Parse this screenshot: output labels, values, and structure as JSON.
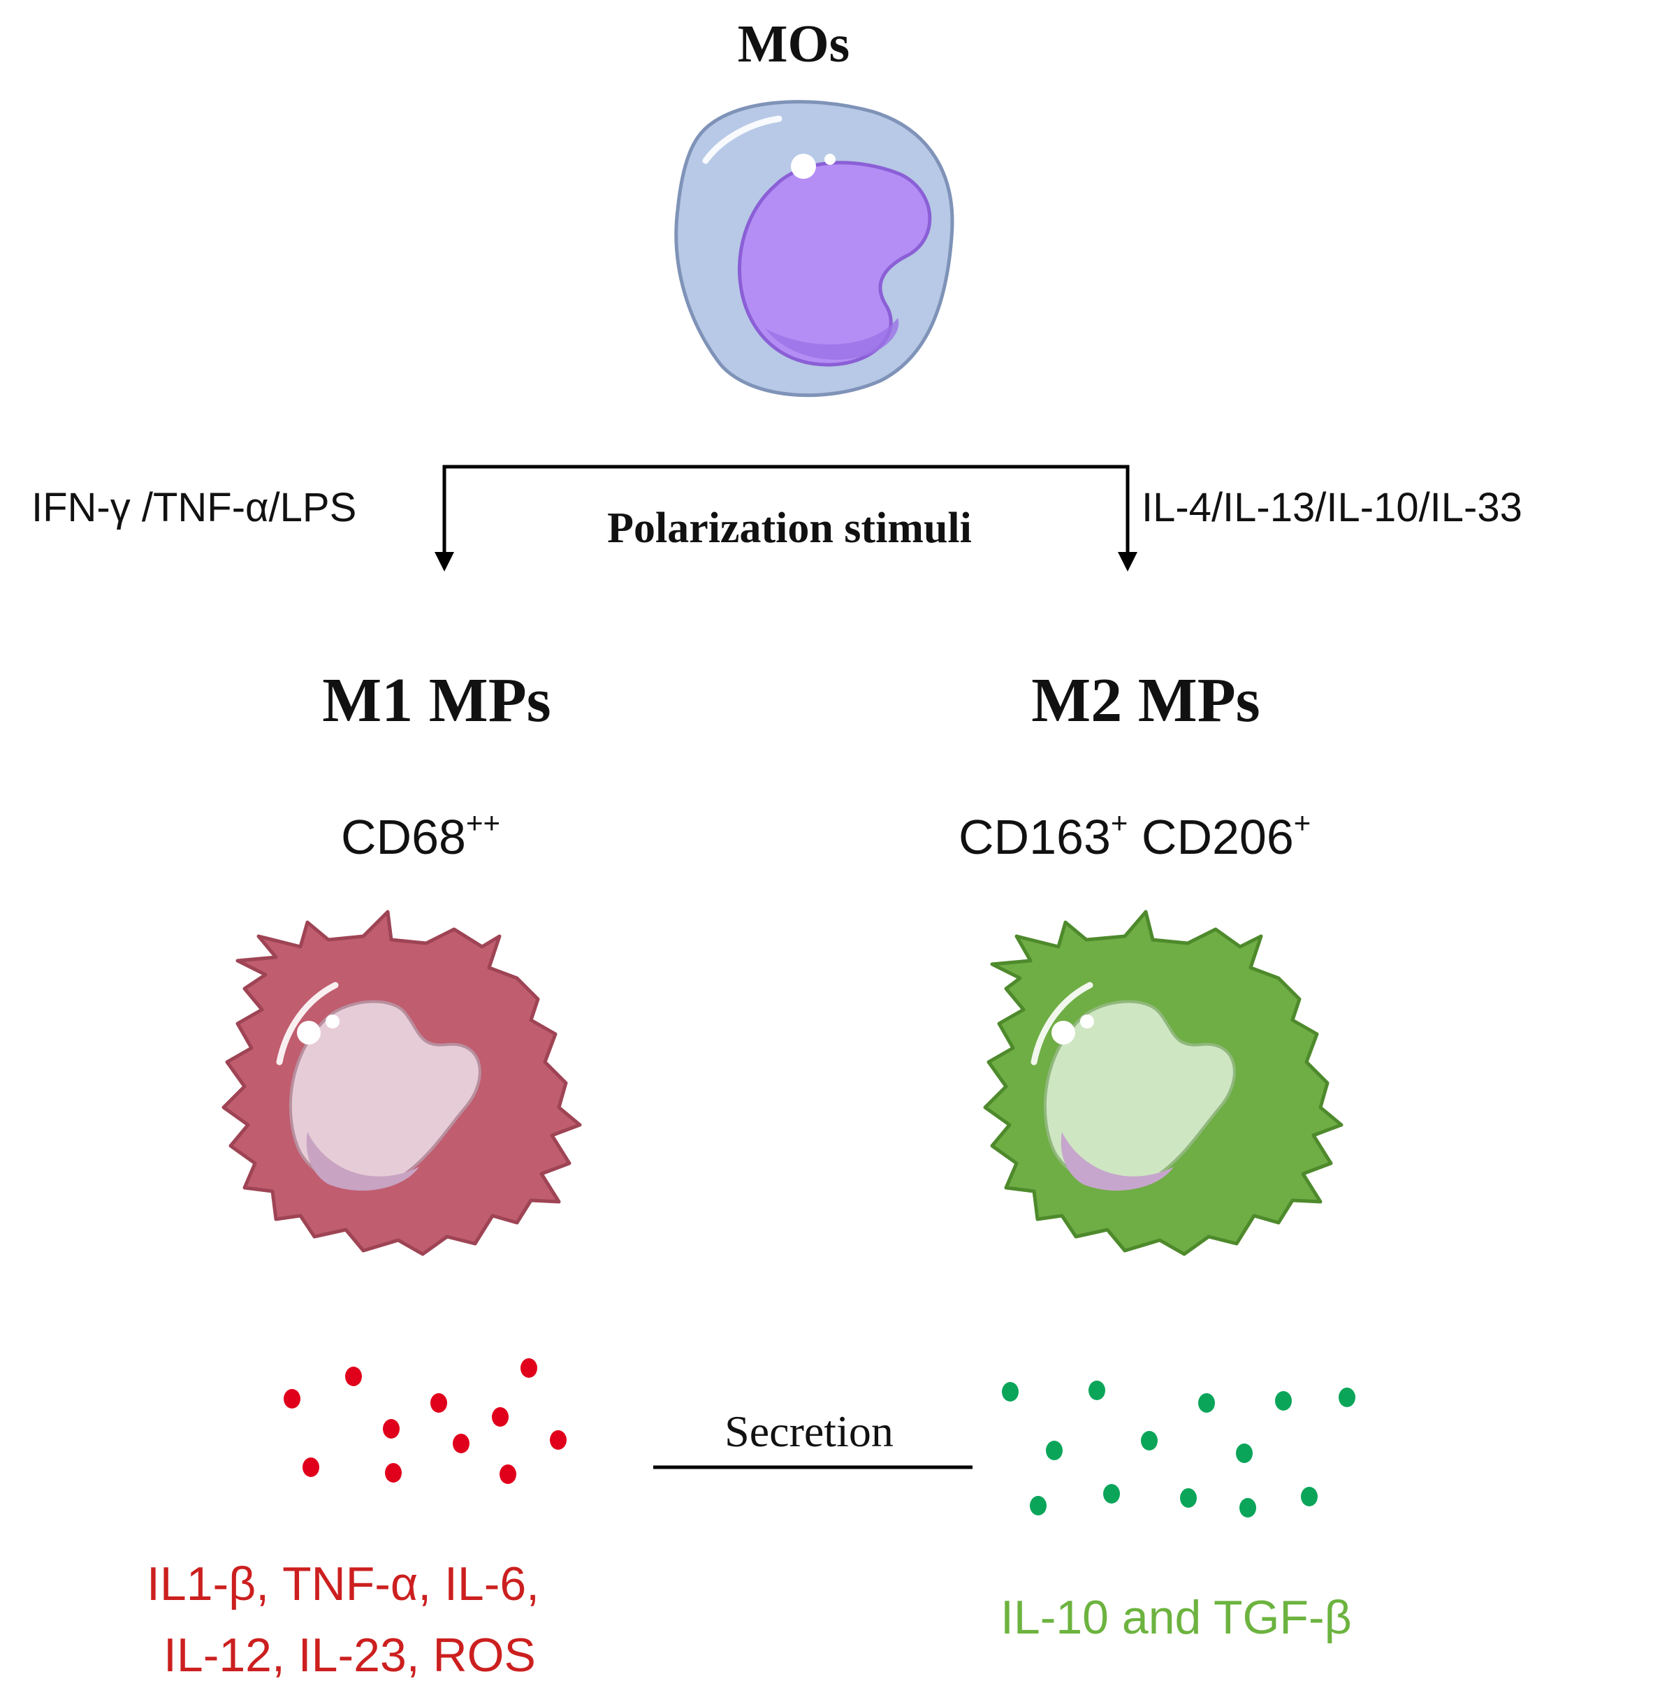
{
  "top_cell": {
    "title": "MOs",
    "colors": {
      "membrane": "#b7c9e6",
      "membrane_edge": "#7f93b8",
      "nucleus": "#b48ef4",
      "nucleus_edge": "#8b5fd6"
    }
  },
  "stimuli": {
    "left": "IFN-γ /TNF-α/LPS",
    "center": "Polarization stimuli",
    "right": "IL-4/IL-13/IL-10/IL-33"
  },
  "m1": {
    "title": "M1 MPs",
    "marker_base": "CD68",
    "marker_sup": "++",
    "cell_color": "#c05d6f",
    "cell_edge": "#9e4455",
    "nucleus_color": "#e6ccd6",
    "dot_color": "#e0001b",
    "cytokines_line1": "IL1-β, TNF-α, IL-6,",
    "cytokines_line2": "IL-12, IL-23, ROS",
    "cytokine_color": "#cc1f1f"
  },
  "m2": {
    "title": "M2 MPs",
    "marker1_base": "CD163",
    "marker1_sup": "+",
    "marker2_base": "CD206",
    "marker2_sup": "+",
    "cell_color": "#6fad45",
    "cell_edge": "#4e8a2c",
    "nucleus_color": "#cfe6c3",
    "dot_color": "#0ba55a",
    "cytokines": "IL-10 and TGF-β",
    "cytokine_color": "#6cb33f"
  },
  "secretion_label": "Secretion"
}
